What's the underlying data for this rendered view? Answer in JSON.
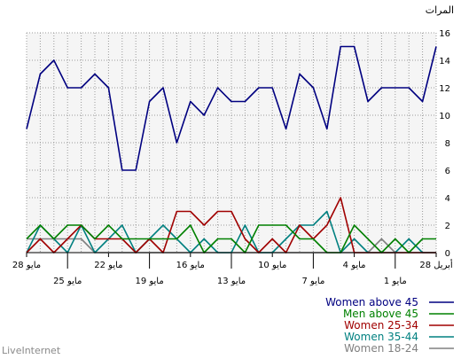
{
  "brand": "LiveInternet",
  "chart_data": {
    "type": "line",
    "ylabel": "المرات",
    "ylim": [
      0,
      16
    ],
    "yticks": [
      0,
      2,
      4,
      6,
      8,
      10,
      12,
      14,
      16
    ],
    "grid": true,
    "legend_position": "bottom-right",
    "x_ticks_top": [
      {
        "label": "28 مايو",
        "x": 0
      },
      {
        "label": "22 مايو",
        "x": 6
      },
      {
        "label": "16 مايو",
        "x": 12
      },
      {
        "label": "10 مايو",
        "x": 18
      },
      {
        "label": "4 مايو",
        "x": 24
      },
      {
        "label": "28 أبريل",
        "x": 30
      }
    ],
    "x_ticks_bottom": [
      {
        "label": "25 مايو",
        "x": 3
      },
      {
        "label": "19 مايو",
        "x": 9
      },
      {
        "label": "13 مايو",
        "x": 15
      },
      {
        "label": "7 مايو",
        "x": 21
      },
      {
        "label": "1 مايو",
        "x": 27
      }
    ],
    "series": [
      {
        "name": "Women above 45",
        "color": "#000080",
        "values": [
          9,
          13,
          14,
          12,
          12,
          13,
          12,
          6,
          6,
          11,
          12,
          8,
          11,
          10,
          12,
          11,
          11,
          12,
          12,
          9,
          13,
          12,
          9,
          15,
          15,
          11,
          12,
          12,
          12,
          11,
          15
        ]
      },
      {
        "name": "Men above 45",
        "color": "#008000",
        "values": [
          1,
          2,
          1,
          2,
          2,
          1,
          2,
          1,
          1,
          1,
          1,
          1,
          2,
          0,
          1,
          1,
          0,
          2,
          2,
          2,
          1,
          1,
          0,
          0,
          2,
          1,
          0,
          1,
          0,
          1,
          1
        ]
      },
      {
        "name": "Women 25-34",
        "color": "#a00000",
        "values": [
          0,
          1,
          0,
          1,
          2,
          1,
          1,
          1,
          0,
          1,
          0,
          3,
          3,
          2,
          3,
          3,
          1,
          0,
          1,
          0,
          2,
          1,
          2,
          4,
          0,
          0,
          0,
          0,
          0,
          0,
          0
        ]
      },
      {
        "name": "Women 35-44",
        "color": "#008080",
        "values": [
          0,
          2,
          1,
          0,
          2,
          0,
          1,
          2,
          0,
          1,
          2,
          1,
          0,
          1,
          0,
          0,
          2,
          0,
          0,
          1,
          2,
          2,
          3,
          0,
          1,
          0,
          0,
          0,
          1,
          0,
          0
        ]
      },
      {
        "name": "Women 18-24",
        "color": "#808080",
        "values": [
          1,
          1,
          1,
          1,
          1,
          0,
          0,
          0,
          0,
          0,
          0,
          0,
          0,
          0,
          0,
          0,
          0,
          0,
          0,
          0,
          0,
          0,
          0,
          0,
          0,
          0,
          1,
          0,
          0,
          0,
          0
        ]
      }
    ]
  }
}
